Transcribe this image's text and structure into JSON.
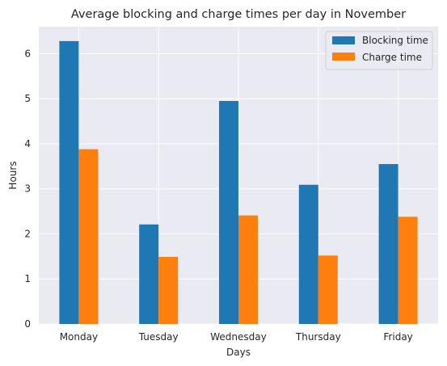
{
  "chart_data": {
    "type": "bar",
    "title": "Average blocking and charge times per day in November",
    "xlabel": "Days",
    "ylabel": "Hours",
    "categories": [
      "Monday",
      "Tuesday",
      "Wednesday",
      "Thursday",
      "Friday"
    ],
    "series": [
      {
        "name": "Blocking time",
        "color": "#1f77b4",
        "values": [
          6.28,
          2.21,
          4.95,
          3.09,
          3.55
        ]
      },
      {
        "name": "Charge time",
        "color": "#ff7f0e",
        "values": [
          3.88,
          1.49,
          2.41,
          1.52,
          2.38
        ]
      }
    ],
    "ylim": [
      0,
      6.6
    ],
    "yticks": [
      "0",
      "1",
      "2",
      "3",
      "4",
      "5",
      "6"
    ],
    "grid": true,
    "legend_position": "top-right",
    "background": "#eaeaf2"
  }
}
